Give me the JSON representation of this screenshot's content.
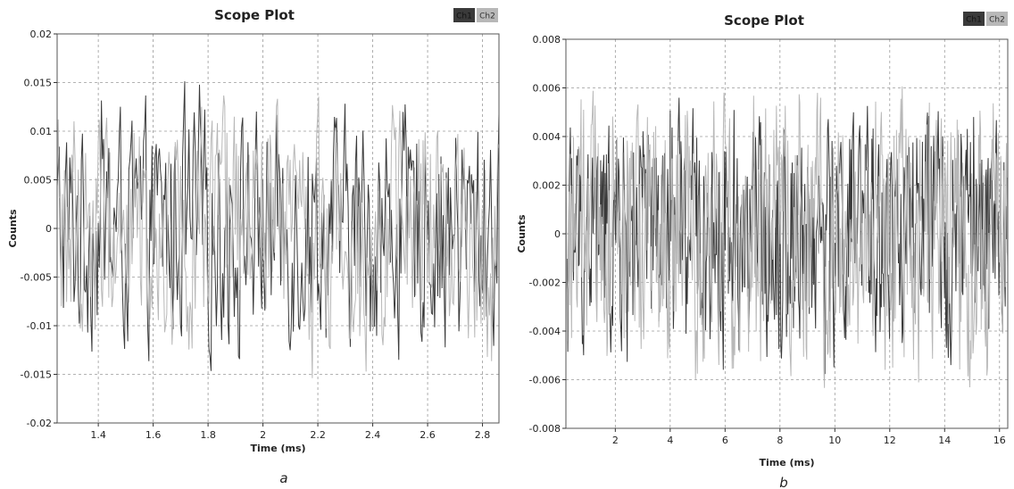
{
  "colors": {
    "ch1": "#3a3a3a",
    "ch2": "#b8b8b8",
    "grid": "#9a9a9a"
  },
  "chart_data": [
    {
      "type": "line",
      "panel_label": "a",
      "title": "Scope Plot",
      "xlabel": "Time (ms)",
      "ylabel": "Counts",
      "xlim": [
        1.25,
        2.86
      ],
      "ylim": [
        -0.02,
        0.02
      ],
      "x_ticks": [
        1.4,
        1.6,
        1.8,
        2,
        2.2,
        2.4,
        2.6,
        2.8
      ],
      "x_tick_labels": [
        "1.4",
        "1.6",
        "1.8",
        "2",
        "2.2",
        "2.4",
        "2.6",
        "2.8"
      ],
      "y_ticks": [
        -0.02,
        -0.015,
        -0.01,
        -0.005,
        0,
        0.005,
        0.01,
        0.015,
        0.02
      ],
      "y_tick_labels": [
        "-0.02",
        "-0.015",
        "-0.01",
        "-0.005",
        "0",
        "0.005",
        "0.01",
        "0.015",
        "0.02"
      ],
      "grid": true,
      "legend_position": "top-right",
      "series": [
        {
          "name": "Ch1",
          "color": "#3a3a3a",
          "amplitude": 0.0155,
          "samples": 420
        },
        {
          "name": "Ch2",
          "color": "#b8b8b8",
          "amplitude": 0.015,
          "samples": 420
        }
      ]
    },
    {
      "type": "line",
      "panel_label": "b",
      "title": "Scope Plot",
      "xlabel": "Time (ms)",
      "ylabel": "Counts",
      "xlim": [
        0.2,
        16.3
      ],
      "ylim": [
        -0.008,
        0.008
      ],
      "x_ticks": [
        2,
        4,
        6,
        8,
        10,
        12,
        14,
        16
      ],
      "x_tick_labels": [
        "2",
        "4",
        "6",
        "8",
        "10",
        "12",
        "14",
        "16"
      ],
      "y_ticks": [
        -0.008,
        -0.006,
        -0.004,
        -0.002,
        0,
        0.002,
        0.004,
        0.006,
        0.008
      ],
      "y_tick_labels": [
        "-0.008",
        "-0.006",
        "-0.004",
        "-0.002",
        "0",
        "0.002",
        "0.004",
        "0.006",
        "0.008"
      ],
      "grid": true,
      "legend_position": "top-right",
      "series": [
        {
          "name": "Ch1",
          "color": "#3a3a3a",
          "amplitude": 0.0062,
          "samples": 700
        },
        {
          "name": "Ch2",
          "color": "#b8b8b8",
          "amplitude": 0.0068,
          "samples": 700
        }
      ]
    }
  ]
}
